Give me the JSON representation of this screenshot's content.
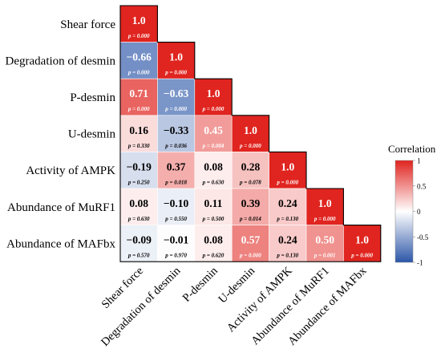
{
  "chart_data": {
    "type": "heatmap",
    "variables": [
      "Shear force",
      "Degradation of desmin",
      "P-desmin",
      "U-desmin",
      "Activity of AMPK",
      "Abundance of MuRF1",
      "Abundance of  MAFbx"
    ],
    "correlation_labels": [
      [
        "1.0"
      ],
      [
        "−0.66",
        "1.0"
      ],
      [
        "0.71",
        "−0.63",
        "1.0"
      ],
      [
        "0.16",
        "−0.33",
        "0.45",
        "1.0"
      ],
      [
        "−0.19",
        "0.37",
        "0.08",
        "0.28",
        "1.0"
      ],
      [
        "0.08",
        "−0.10",
        "0.11",
        "0.39",
        "0.24",
        "1.0"
      ],
      [
        "−0.09",
        "−0.01",
        "0.08",
        "0.57",
        "0.24",
        "0.50",
        "1.0"
      ]
    ],
    "correlations": [
      [
        1.0
      ],
      [
        -0.66,
        1.0
      ],
      [
        0.71,
        -0.63,
        1.0
      ],
      [
        0.16,
        -0.33,
        0.45,
        1.0
      ],
      [
        -0.19,
        0.37,
        0.08,
        0.28,
        1.0
      ],
      [
        0.08,
        -0.1,
        0.11,
        0.39,
        0.24,
        1.0
      ],
      [
        -0.09,
        -0.01,
        0.08,
        0.57,
        0.24,
        0.5,
        1.0
      ]
    ],
    "p_values": [
      [
        "p = 0.000"
      ],
      [
        "p = 0.000",
        "p = 0.000"
      ],
      [
        "p = 0.000",
        "p = 0.000",
        "p = 0.000"
      ],
      [
        "p = 0.330",
        "p = 0.036",
        "p = 0.004",
        "p = 0.000"
      ],
      [
        "p = 0.250",
        "p = 0.018",
        "p = 0.630",
        "p = 0.078",
        "p = 0.000"
      ],
      [
        "p = 0.630",
        "p = 0.550",
        "p = 0.500",
        "p = 0.014",
        "p = 0.130",
        "p = 0.000"
      ],
      [
        "p = 0.570",
        "p = 0.970",
        "p = 0.620",
        "p = 0.000",
        "p = 0.130",
        "p = 0.001",
        "p = 0.000"
      ]
    ],
    "legend": {
      "title": "Correlation",
      "ticks": [
        "1",
        "0.5",
        "0",
        "-0.5",
        "-1"
      ],
      "tick_values": [
        1,
        0.5,
        0,
        -0.5,
        -1
      ],
      "range": [
        -1,
        1
      ],
      "placement": "right"
    },
    "colors": {
      "negative": "#2c56a8",
      "neutral": "#ffffff",
      "positive": "#e0241f"
    }
  }
}
